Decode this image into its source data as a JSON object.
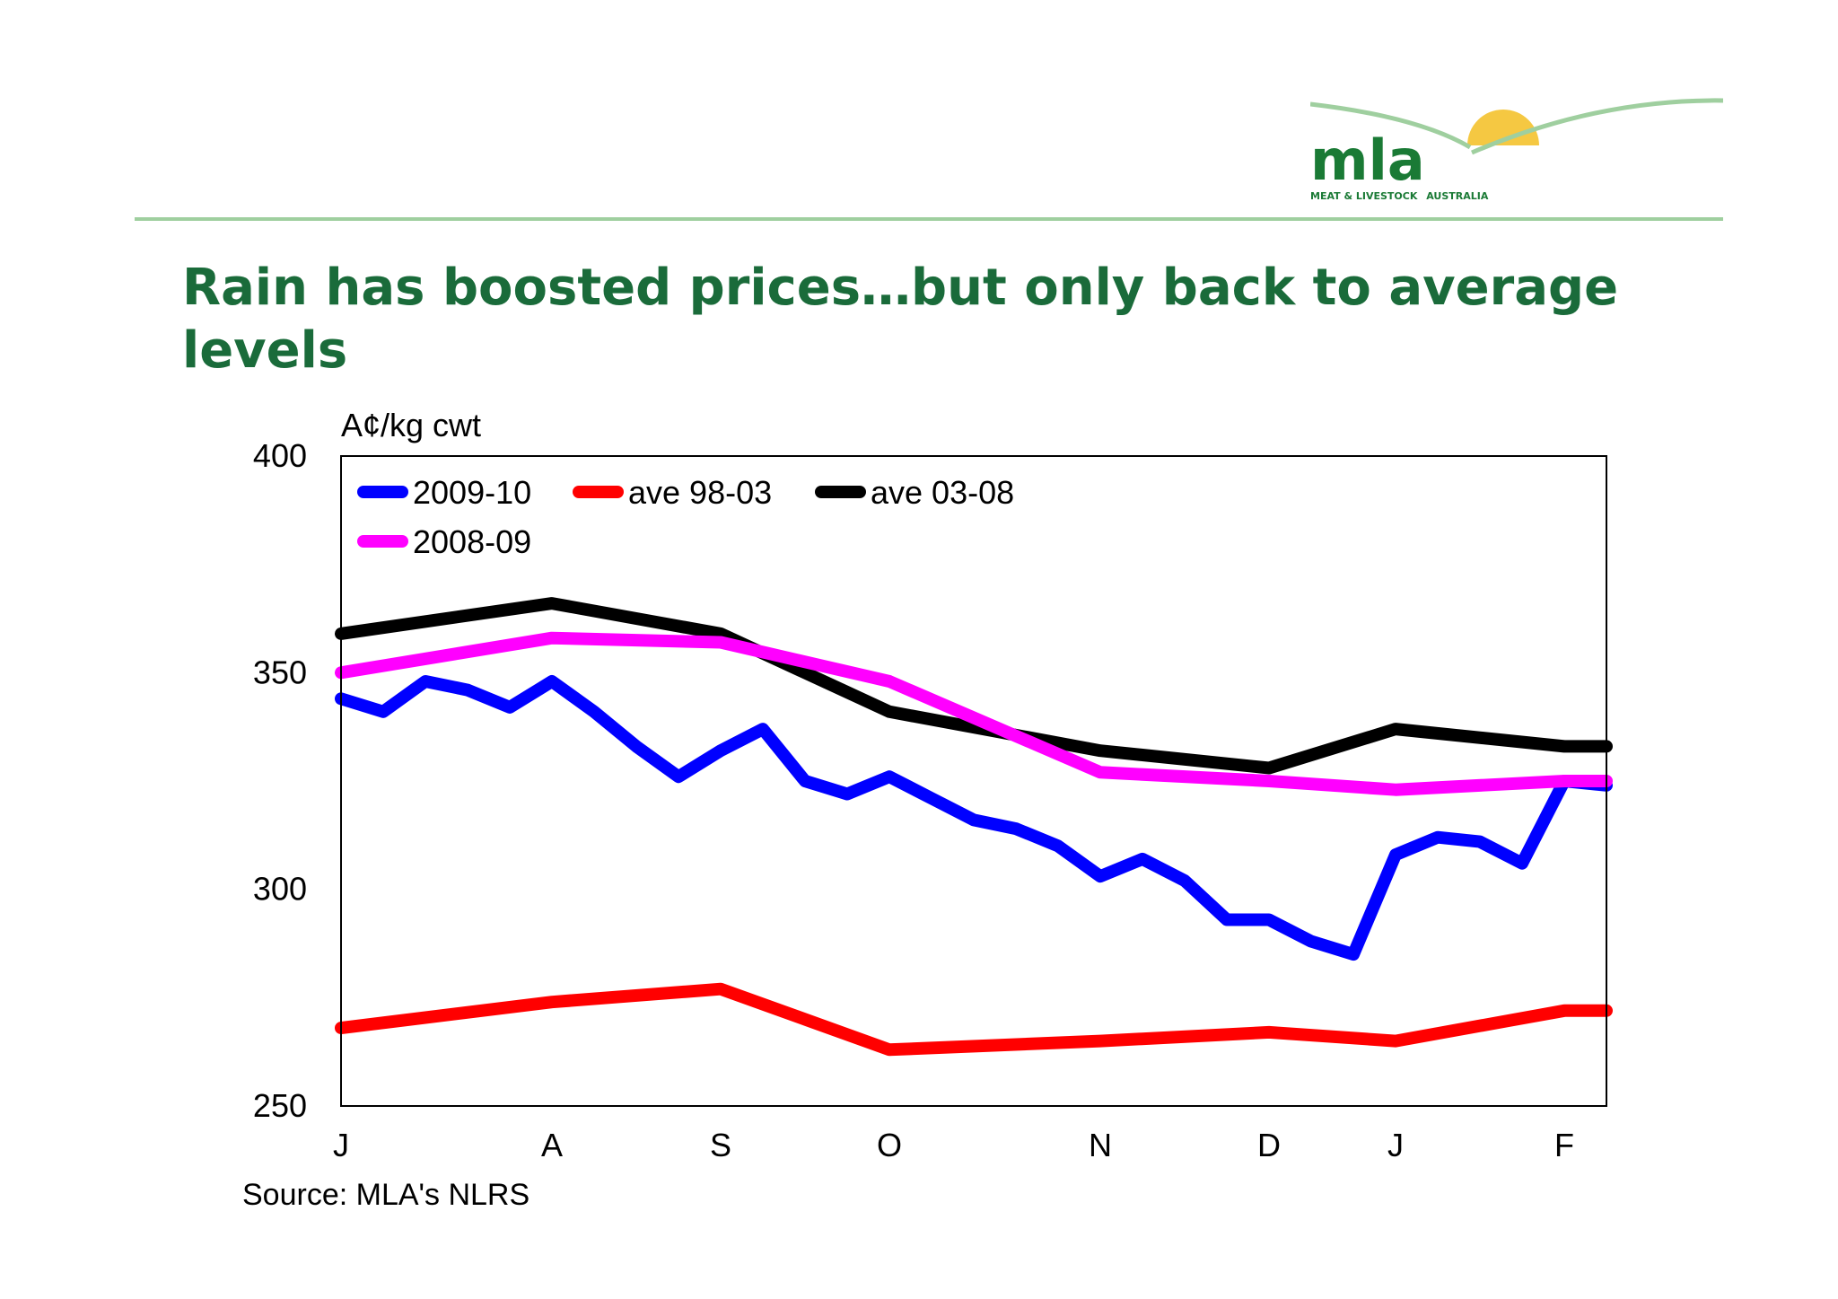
{
  "header": {
    "logo_text": "mla",
    "logo_subtext": "MEAT & LIVESTOCK",
    "logo_subtext_accent": "AUSTRALIA",
    "title": "Rain has boosted prices…but only back to average levels"
  },
  "footer": {
    "source": "Source: MLA's NLRS"
  },
  "colors": {
    "title": "#1a6b3a",
    "logo_green": "#1a7a35",
    "sun": "#f5c842",
    "rule": "#9fcf9f"
  },
  "chart_data": {
    "type": "line",
    "ylabel": "A¢/kg cwt",
    "ylim": [
      250,
      400
    ],
    "yticks": [
      "400",
      "350",
      "300",
      "250"
    ],
    "xlim": [
      0,
      30
    ],
    "xticks": [
      {
        "label": "J",
        "x": 0
      },
      {
        "label": "A",
        "x": 5
      },
      {
        "label": "S",
        "x": 9
      },
      {
        "label": "O",
        "x": 13
      },
      {
        "label": "N",
        "x": 18
      },
      {
        "label": "D",
        "x": 22
      },
      {
        "label": "J",
        "x": 25
      },
      {
        "label": "F",
        "x": 29
      }
    ],
    "grid": false,
    "legend_position": "top-left",
    "series": [
      {
        "name": "2009-10",
        "color": "#0000ff",
        "points": [
          [
            0,
            344
          ],
          [
            1,
            341
          ],
          [
            2,
            348
          ],
          [
            3,
            346
          ],
          [
            4,
            342
          ],
          [
            5,
            348
          ],
          [
            6,
            341
          ],
          [
            7,
            333
          ],
          [
            8,
            326
          ],
          [
            9,
            332
          ],
          [
            10,
            337
          ],
          [
            11,
            325
          ],
          [
            12,
            322
          ],
          [
            13,
            326
          ],
          [
            14,
            321
          ],
          [
            15,
            316
          ],
          [
            16,
            314
          ],
          [
            17,
            310
          ],
          [
            18,
            303
          ],
          [
            19,
            307
          ],
          [
            20,
            302
          ],
          [
            21,
            293
          ],
          [
            22,
            293
          ],
          [
            23,
            288
          ],
          [
            24,
            285
          ],
          [
            25,
            308
          ],
          [
            26,
            312
          ],
          [
            27,
            311
          ],
          [
            28,
            306
          ],
          [
            29,
            325
          ],
          [
            30,
            324
          ]
        ]
      },
      {
        "name": "ave 98-03",
        "color": "#ff0000",
        "points": [
          [
            0,
            268
          ],
          [
            5,
            274
          ],
          [
            9,
            277
          ],
          [
            13,
            263
          ],
          [
            18,
            265
          ],
          [
            22,
            267
          ],
          [
            25,
            265
          ],
          [
            29,
            272
          ],
          [
            30,
            272
          ]
        ]
      },
      {
        "name": "ave 03-08",
        "color": "#000000",
        "points": [
          [
            0,
            359
          ],
          [
            5,
            366
          ],
          [
            9,
            359
          ],
          [
            13,
            341
          ],
          [
            18,
            332
          ],
          [
            22,
            328
          ],
          [
            25,
            337
          ],
          [
            29,
            333
          ],
          [
            30,
            333
          ]
        ]
      },
      {
        "name": "2008-09",
        "color": "#ff00ff",
        "points": [
          [
            0,
            350
          ],
          [
            5,
            358
          ],
          [
            9,
            357
          ],
          [
            13,
            348
          ],
          [
            18,
            327
          ],
          [
            22,
            325
          ],
          [
            25,
            323
          ],
          [
            29,
            325
          ],
          [
            30,
            325
          ]
        ]
      }
    ]
  }
}
